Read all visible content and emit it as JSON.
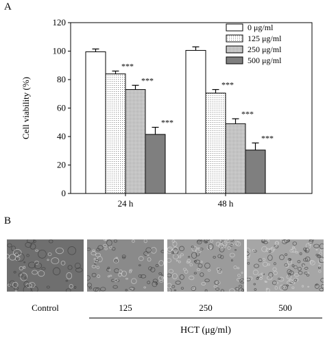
{
  "panels": {
    "a": "A",
    "b": "B"
  },
  "chart_data": {
    "type": "bar",
    "categories": [
      "24 h",
      "48 h"
    ],
    "ylabel": "Cell viability (%)",
    "xlabel": "",
    "ylim": [
      0,
      120
    ],
    "yticks": [
      0,
      20,
      40,
      60,
      80,
      100,
      120
    ],
    "legend_position": "top-right",
    "series": [
      {
        "name": "0     μg/ml",
        "values": [
          99.5,
          100.5
        ],
        "errors": [
          2,
          2.5
        ],
        "sig": [
          "",
          ""
        ],
        "color": "#ffffff",
        "pattern": "none"
      },
      {
        "name": "125  μg/ml",
        "values": [
          84,
          70.5
        ],
        "errors": [
          2,
          2.5
        ],
        "sig": [
          "***",
          "***"
        ],
        "color": "#ffffff",
        "pattern": "dots"
      },
      {
        "name": "250  μg/ml",
        "values": [
          73,
          49
        ],
        "errors": [
          3,
          3.5
        ],
        "sig": [
          "***",
          "***"
        ],
        "color": "#cfcfcf",
        "pattern": "fine"
      },
      {
        "name": "500  μg/ml",
        "values": [
          41.5,
          30.5
        ],
        "errors": [
          5,
          5
        ],
        "sig": [
          "***",
          "***"
        ],
        "color": "#7f7f7f",
        "pattern": "none"
      }
    ]
  },
  "micrographs": {
    "labels": [
      "Control",
      "125",
      "250",
      "500"
    ],
    "colors": [
      "#6f6f6f",
      "#8a8a8a",
      "#9b9b9b",
      "#a6a6a6"
    ]
  },
  "treatment_label": "HCT (μg/ml)"
}
